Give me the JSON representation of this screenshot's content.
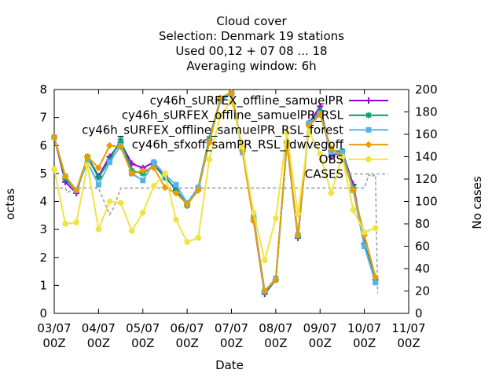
{
  "chart_data": {
    "type": "line",
    "title_lines": [
      "Cloud cover",
      "Selection: Denmark     19 stations",
      "Used  00,12  + 07 08 ... 18",
      "Averaging window:  6h"
    ],
    "xlabel": "Date",
    "ylabel": "octas",
    "y2label": "No cases",
    "xlim": [
      0,
      8
    ],
    "ylim": [
      0,
      8
    ],
    "y2lim": [
      0,
      200
    ],
    "x_ticks": [
      {
        "x": 0,
        "l1": "03/07",
        "l2": "00Z"
      },
      {
        "x": 1,
        "l1": "04/07",
        "l2": "00Z"
      },
      {
        "x": 2,
        "l1": "05/07",
        "l2": "00Z"
      },
      {
        "x": 3,
        "l1": "06/07",
        "l2": "00Z"
      },
      {
        "x": 4,
        "l1": "07/07",
        "l2": "00Z"
      },
      {
        "x": 5,
        "l1": "08/07",
        "l2": "00Z"
      },
      {
        "x": 6,
        "l1": "09/07",
        "l2": "00Z"
      },
      {
        "x": 7,
        "l1": "10/07",
        "l2": "00Z"
      },
      {
        "x": 8,
        "l1": "11/07",
        "l2": "00Z"
      }
    ],
    "y_ticks": [
      0,
      1,
      2,
      3,
      4,
      5,
      6,
      7,
      8
    ],
    "y2_ticks": [
      0,
      20,
      40,
      60,
      80,
      100,
      120,
      140,
      160,
      180,
      200
    ],
    "x": [
      0.0,
      0.25,
      0.5,
      0.75,
      1.0,
      1.25,
      1.5,
      1.75,
      2.0,
      2.25,
      2.5,
      2.75,
      3.0,
      3.25,
      3.5,
      3.75,
      4.0,
      4.25,
      4.5,
      4.75,
      5.0,
      5.25,
      5.5,
      5.75,
      6.0,
      6.25,
      6.5,
      6.75,
      7.0,
      7.25
    ],
    "series": [
      {
        "name": "cy46h_sURFEX_offline_samuelPR",
        "color": "#9400d3",
        "marker": "plus",
        "values": [
          6.3,
          4.7,
          4.3,
          5.6,
          4.9,
          5.6,
          6.1,
          5.35,
          5.2,
          5.4,
          4.9,
          4.4,
          3.9,
          4.4,
          6.2,
          7.6,
          7.85,
          5.8,
          3.3,
          0.7,
          1.2,
          6.1,
          2.7,
          6.8,
          7.4,
          5.6,
          5.8,
          4.6,
          2.5,
          1.2
        ]
      },
      {
        "name": "cy46h_sURFEX_offline_samuelPR_RSL",
        "color": "#009e73",
        "marker": "star",
        "values": [
          6.3,
          4.8,
          4.4,
          5.6,
          4.85,
          5.5,
          6.2,
          5.1,
          5.0,
          5.3,
          4.85,
          4.45,
          3.85,
          4.5,
          6.25,
          7.65,
          7.9,
          5.85,
          3.4,
          0.75,
          1.2,
          6.1,
          2.75,
          6.75,
          7.25,
          5.8,
          5.8,
          4.5,
          2.45,
          1.2
        ]
      },
      {
        "name": "cy46h_sURFEX_offline_samuelPR_RSL_forest",
        "color": "#56b4e9",
        "marker": "square",
        "values": [
          6.3,
          4.9,
          4.4,
          5.4,
          4.6,
          5.4,
          6.0,
          5.0,
          4.75,
          5.4,
          4.95,
          4.6,
          3.95,
          4.5,
          6.15,
          7.6,
          7.85,
          5.75,
          3.45,
          0.8,
          1.25,
          6.05,
          2.8,
          6.8,
          7.15,
          5.7,
          5.75,
          4.4,
          2.4,
          1.1
        ]
      },
      {
        "name": "cy46h_sfxoff_samPR_RSL_ldwvegoff",
        "color": "#e69f00",
        "marker": "diamond",
        "values": [
          6.3,
          4.9,
          4.4,
          5.6,
          5.2,
          6.0,
          5.95,
          5.0,
          5.1,
          5.2,
          4.5,
          4.3,
          3.9,
          4.4,
          6.1,
          7.7,
          7.9,
          5.8,
          3.3,
          0.8,
          1.2,
          6.1,
          2.8,
          6.7,
          7.1,
          5.9,
          5.6,
          4.4,
          2.8,
          1.3
        ]
      }
    ],
    "obs": {
      "name": "OBS",
      "color": "#f0e442",
      "marker": "circle",
      "values": [
        5.15,
        3.2,
        3.25,
        5.3,
        3.0,
        4.0,
        3.95,
        2.95,
        3.6,
        4.55,
        5.0,
        3.35,
        2.55,
        2.7,
        5.5,
        7.05,
        7.6,
        5.95,
        3.6,
        1.9,
        3.4,
        6.45,
        3.55,
        6.5,
        5.7,
        4.3,
        5.6,
        3.7,
        2.9,
        3.05
      ]
    },
    "cases": {
      "name": "CASES",
      "color": "#a0a0a0",
      "style": "dashed",
      "x": [
        0.0,
        0.25,
        0.3,
        0.5,
        0.75,
        1.0,
        1.25,
        1.35,
        1.5,
        1.75,
        2.0,
        2.25,
        2.5,
        2.75,
        3.0,
        3.25,
        3.5,
        3.75,
        4.0,
        4.25,
        4.5,
        4.75,
        5.0,
        5.25,
        5.5,
        5.75,
        6.0,
        6.25,
        6.5,
        6.75,
        7.0,
        7.1,
        7.15,
        7.25,
        7.3
      ],
      "values": [
        112,
        112,
        108,
        112,
        112,
        112,
        88,
        95,
        112,
        112,
        112,
        112,
        112,
        112,
        112,
        112,
        112,
        112,
        112,
        112,
        112,
        112,
        112,
        112,
        112,
        112,
        112,
        112,
        112,
        112,
        112,
        124,
        122,
        124,
        18
      ]
    }
  }
}
